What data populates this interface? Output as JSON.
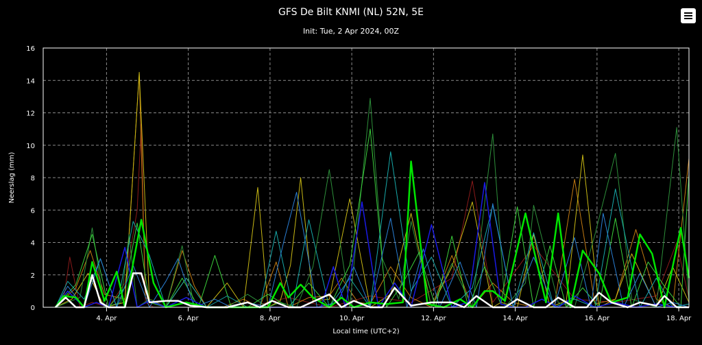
{
  "chart_data": {
    "type": "line",
    "title": "GFS De Bilt KNMI (NL) 52N, 5E",
    "subtitle": "Init: Tue, 2 Apr 2024, 00Z",
    "xlabel": "Local time (UTC+2)",
    "ylabel": "Neerslag (mm)",
    "ylim": [
      0,
      16
    ],
    "yticks": [
      0,
      2,
      4,
      6,
      8,
      10,
      12,
      14,
      16
    ],
    "xlim": [
      0,
      15.8
    ],
    "xtick_positions": [
      1.55,
      3.55,
      5.55,
      7.55,
      9.55,
      11.55,
      13.55,
      15.55
    ],
    "xtick_labels": [
      "4. Apr",
      "6. Apr",
      "8. Apr",
      "10. Apr",
      "12. Apr",
      "14. Apr",
      "16. Apr",
      "18. Apr"
    ],
    "grid": true,
    "series": [
      {
        "color": "#8b1a1a",
        "width": 1,
        "x": [
          0.3,
          0.5,
          0.65,
          0.9,
          1.2,
          1.6,
          2.0,
          2.3,
          2.4,
          2.5,
          2.7,
          3.0,
          4.0,
          5.0,
          6.0,
          7.0,
          8.0,
          9.0,
          10.0,
          10.5,
          11.0,
          12.0,
          13.0,
          14.0,
          15.0,
          15.5,
          15.8
        ],
        "y": [
          0,
          0.5,
          3.1,
          0,
          0.3,
          0,
          1.5,
          6,
          11.3,
          0.3,
          0,
          0,
          0,
          0,
          0.6,
          0,
          0.7,
          0.3,
          1.8,
          7.8,
          0.3,
          3.8,
          0.5,
          0.3,
          0.7,
          4,
          0.5
        ]
      },
      {
        "color": "#c47b12",
        "width": 1,
        "x": [
          0.3,
          0.8,
          1.15,
          1.5,
          2.0,
          2.35,
          2.5,
          2.7,
          3.0,
          3.4,
          3.7,
          4.0,
          4.4,
          4.9,
          5.3,
          5.7,
          6.0,
          6.5,
          7.0,
          7.3,
          7.7,
          8.0,
          8.5,
          9.0,
          9.5,
          10.0,
          10.5,
          11.0,
          11.5,
          12.0,
          12.5,
          13.0,
          13.5,
          14.0,
          14.5,
          15.0,
          15.4,
          15.8
        ],
        "y": [
          0,
          1.2,
          3.5,
          0.8,
          0.5,
          14.4,
          0.6,
          0.4,
          0,
          3.5,
          1.3,
          0,
          0,
          0.5,
          0,
          2.8,
          0,
          0.6,
          0.7,
          1.8,
          0.3,
          0.2,
          2.5,
          0.6,
          0,
          3.2,
          0,
          1.5,
          0.3,
          0,
          0,
          7.9,
          0.2,
          0.5,
          4.8,
          0.5,
          0,
          9.2
        ]
      },
      {
        "color": "#c9b914",
        "width": 1,
        "x": [
          0.3,
          0.7,
          1.1,
          1.5,
          2.0,
          2.35,
          2.6,
          3.0,
          3.5,
          4.0,
          4.5,
          4.9,
          5.25,
          5.5,
          5.8,
          6.05,
          6.3,
          6.6,
          7.0,
          7.5,
          8.0,
          8.5,
          9.0,
          9.5,
          10.0,
          10.5,
          11.0,
          11.2,
          11.6,
          12.0,
          12.4,
          12.8,
          13.2,
          13.6,
          14.0,
          14.4,
          15.0,
          15.4,
          15.8
        ],
        "y": [
          0,
          0.5,
          2.1,
          0,
          0.3,
          14.5,
          0.4,
          0,
          1.8,
          0,
          1.5,
          0,
          7.4,
          0,
          0.4,
          2.6,
          8,
          0.4,
          0.5,
          6.7,
          0,
          0.8,
          5.8,
          0,
          2.5,
          6.5,
          0,
          0.3,
          0,
          4.5,
          0,
          0.4,
          9.4,
          0,
          0.5,
          3.3,
          0,
          2.5,
          0.3
        ]
      },
      {
        "color": "#2d8f3a",
        "width": 1,
        "x": [
          0.3,
          0.9,
          1.2,
          1.5,
          1.9,
          2.1,
          2.3,
          2.6,
          3.0,
          3.4,
          3.7,
          4.0,
          4.5,
          5.0,
          5.5,
          5.8,
          6.2,
          6.6,
          7.0,
          7.5,
          8.0,
          8.3,
          8.7,
          9.0,
          9.5,
          10.0,
          10.5,
          11.0,
          11.3,
          11.8,
          12.0,
          12.6,
          13.0,
          13.5,
          14.0,
          14.4,
          15.0,
          15.5,
          15.8
        ],
        "y": [
          0,
          0.6,
          4.9,
          0,
          0.3,
          4.5,
          0,
          0.5,
          0,
          3.8,
          0,
          0,
          0,
          0.8,
          0,
          0.3,
          0,
          2.5,
          8.5,
          0,
          12.9,
          3,
          0.5,
          5.3,
          0,
          2.7,
          0,
          10.7,
          0,
          1.5,
          6.3,
          0.3,
          0,
          4.5,
          9.5,
          0.5,
          0,
          11.1,
          0.3
        ]
      },
      {
        "color": "#3bd13b",
        "width": 1,
        "x": [
          0.3,
          0.8,
          1.2,
          1.6,
          2.0,
          2.3,
          2.6,
          3.0,
          3.4,
          3.8,
          4.2,
          4.6,
          5.0,
          5.5,
          6.0,
          6.5,
          7.0,
          7.5,
          8.0,
          8.4,
          8.8,
          9.2,
          9.6,
          10.0,
          10.4,
          10.8,
          11.2,
          11.6,
          12.0,
          12.4,
          12.8,
          13.2,
          13.6,
          14.0,
          14.4,
          14.8,
          15.2,
          15.6,
          15.8
        ],
        "y": [
          0,
          1.4,
          4.5,
          0,
          1.2,
          5.2,
          0.3,
          0,
          1.8,
          0,
          3.2,
          0,
          0,
          0.8,
          0,
          1.5,
          0,
          2.6,
          11,
          0,
          1.5,
          3.4,
          0,
          4.4,
          0,
          2.5,
          0.2,
          6.2,
          0,
          3.8,
          0,
          1.2,
          0,
          5.5,
          0,
          2.8,
          1.3,
          0,
          8.2
        ]
      },
      {
        "color": "#17a9a9",
        "width": 1,
        "x": [
          0.3,
          0.6,
          1.0,
          1.4,
          1.8,
          2.2,
          2.6,
          3.0,
          3.5,
          4.0,
          4.5,
          5.0,
          5.3,
          5.7,
          6.1,
          6.5,
          7.0,
          7.5,
          8.0,
          8.5,
          9.0,
          9.5,
          10.0,
          10.5,
          11.0,
          11.5,
          12.0,
          12.5,
          13.0,
          13.5,
          14.0,
          14.6,
          15.0,
          15.4,
          15.8
        ],
        "y": [
          0,
          1.6,
          0.5,
          3,
          0,
          5.3,
          3.2,
          0,
          1.8,
          0,
          0.7,
          0,
          0,
          4.7,
          0,
          5.4,
          0,
          1.8,
          0,
          9.6,
          1,
          3.1,
          0,
          1.2,
          6.3,
          0,
          4.6,
          0,
          0.5,
          0,
          7.3,
          0,
          1.8,
          0,
          0.2
        ]
      },
      {
        "color": "#2a7fd4",
        "width": 1,
        "x": [
          0.3,
          0.6,
          1.0,
          1.4,
          1.8,
          2.2,
          2.6,
          3.0,
          3.3,
          3.7,
          4.2,
          4.6,
          5.0,
          5.5,
          5.9,
          6.2,
          6.7,
          7.2,
          7.6,
          8.0,
          8.5,
          8.9,
          9.3,
          9.7,
          10.2,
          10.6,
          11.0,
          11.5,
          12.0,
          12.5,
          13.0,
          13.4,
          13.7,
          14.2,
          14.6,
          15.0,
          15.4,
          15.8
        ],
        "y": [
          0,
          1.3,
          0,
          3,
          0,
          2.6,
          0,
          1.6,
          3,
          0,
          0.5,
          0,
          0.3,
          0,
          4.2,
          7.1,
          0,
          0.3,
          2.5,
          0,
          5.5,
          0,
          3.6,
          0,
          2.8,
          0,
          6.4,
          0,
          3.1,
          0,
          4.3,
          0,
          5.8,
          0,
          2.1,
          0,
          0.3,
          0
        ]
      },
      {
        "color": "#1a1ae6",
        "width": 1.5,
        "x": [
          0.3,
          0.6,
          1.0,
          1.3,
          1.6,
          2.0,
          2.3,
          2.6,
          3.0,
          3.5,
          4.0,
          4.5,
          5.0,
          5.5,
          6.0,
          6.5,
          6.8,
          7.1,
          7.4,
          7.8,
          8.2,
          8.6,
          9.0,
          9.5,
          10.0,
          10.4,
          10.8,
          11.2,
          11.5,
          11.8,
          12.2,
          12.6,
          13.0,
          13.5,
          14.0,
          14.5,
          15.0,
          15.5,
          15.8
        ],
        "y": [
          0,
          1,
          0,
          0.3,
          0,
          3.7,
          0,
          0.4,
          0,
          0.6,
          0,
          0,
          0,
          0,
          0,
          0,
          0,
          2.5,
          0,
          6.5,
          0,
          1.5,
          0,
          5.1,
          0,
          0.3,
          7.7,
          0.2,
          0,
          0,
          0.5,
          0,
          0.7,
          0,
          0.3,
          0,
          0.2,
          0,
          0
        ]
      },
      {
        "color": "#00e600",
        "width": 2.5,
        "x": [
          0.3,
          0.5,
          0.8,
          1.0,
          1.2,
          1.5,
          1.8,
          2.0,
          2.4,
          2.7,
          3.0,
          3.5,
          4.0,
          4.5,
          5.0,
          5.3,
          5.5,
          5.8,
          6.0,
          6.3,
          6.6,
          7.0,
          7.3,
          7.6,
          8.0,
          8.4,
          8.8,
          9.0,
          9.4,
          9.8,
          10.2,
          10.5,
          10.8,
          11.0,
          11.3,
          11.8,
          12.3,
          12.6,
          12.9,
          13.2,
          13.6,
          13.9,
          14.3,
          14.6,
          14.9,
          15.2,
          15.4,
          15.6,
          15.8
        ],
        "y": [
          0,
          0.7,
          0.6,
          0,
          2.8,
          0.4,
          2.2,
          0,
          5.4,
          1.5,
          0,
          0.3,
          0,
          0,
          0,
          0,
          0,
          1.5,
          0.6,
          1.4,
          0.6,
          0,
          0.6,
          0,
          0.3,
          0.2,
          0.3,
          9,
          0.2,
          0,
          0.5,
          0,
          1,
          1,
          0.4,
          5.8,
          0.3,
          5.8,
          0,
          3.5,
          2.1,
          0.3,
          0.6,
          4.5,
          3.3,
          0,
          2.5,
          4.9,
          1.8
        ]
      },
      {
        "color": "#ffffff",
        "width": 2.5,
        "x": [
          0.3,
          0.55,
          0.8,
          1.0,
          1.2,
          1.4,
          1.6,
          2.0,
          2.2,
          2.4,
          2.6,
          3.0,
          3.3,
          3.6,
          4.0,
          4.5,
          5.0,
          5.3,
          5.6,
          6.0,
          6.3,
          7.0,
          7.3,
          7.6,
          8.0,
          8.3,
          8.6,
          9.0,
          9.5,
          10.0,
          10.3,
          10.6,
          11.0,
          11.3,
          11.6,
          12.0,
          12.3,
          12.6,
          13.0,
          13.3,
          13.6,
          13.9,
          14.3,
          14.6,
          15.0,
          15.2,
          15.5,
          15.8
        ],
        "y": [
          0,
          0.6,
          0,
          0,
          2,
          0.3,
          0,
          0,
          2.1,
          2.1,
          0.3,
          0.4,
          0.4,
          0.1,
          0,
          0,
          0.3,
          0,
          0.4,
          0,
          0,
          0.8,
          0,
          0.4,
          0,
          0,
          1.2,
          0.1,
          0.3,
          0.3,
          0,
          0.7,
          0,
          0,
          0.5,
          0,
          0,
          0.6,
          0,
          0,
          0.9,
          0.3,
          0,
          0.3,
          0.1,
          0.7,
          0,
          0
        ]
      }
    ]
  }
}
